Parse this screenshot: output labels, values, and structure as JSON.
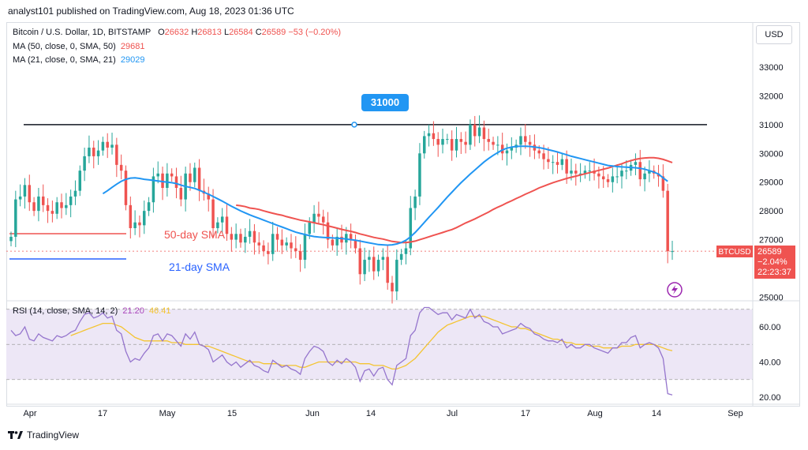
{
  "header": {
    "publisher": "analyst101 published on TradingView.com, Aug 18, 2023 01:36 UTC"
  },
  "legend": {
    "symbol": "Bitcoin / U.S. Dollar, 1D, BITSTAMP",
    "o_label": "O",
    "o_val": "26632",
    "h_label": "H",
    "h_val": "26813",
    "l_label": "L",
    "l_val": "26584",
    "c_label": "C",
    "c_val": "26589",
    "change": "−53 (−0.20%)",
    "ma50_label": "MA (50, close, 0, SMA, 50)",
    "ma50_val": "29681",
    "ma21_label": "MA (21, close, 0, SMA, 21)",
    "ma21_val": "29029",
    "rsi_label": "RSI (14, close, SMA, 14, 2)",
    "rsi_val": "21.20",
    "rsi_sma_val": "46.41"
  },
  "currency_button": "USD",
  "badges": {
    "resistance": "31000",
    "ticker": "BTCUSD",
    "price": "26589",
    "change_pct": "−2.04%",
    "countdown": "22:23:37"
  },
  "annotations": {
    "sma50": "50-day SMA",
    "sma21": "21-day SMA"
  },
  "footer": {
    "brand": "TradingView"
  },
  "colors": {
    "up": "#26a69a",
    "down": "#ef5350",
    "ma50": "#ef5350",
    "ma21": "#2196f3",
    "rsi": "#9575cd",
    "rsi_sma": "#f4c430",
    "rsi_band": "#ede7f6",
    "badge_blue": "#2196f3"
  },
  "chart_data": {
    "type": "candlestick",
    "title": "Bitcoin / U.S. Dollar, 1D, BITSTAMP",
    "price_axis_ticks": [
      "33000",
      "32000",
      "31000",
      "30000",
      "29000",
      "28000",
      "27000",
      "25000"
    ],
    "ylim": [
      25000,
      33500
    ],
    "x_tick_labels": [
      "Apr",
      "17",
      "May",
      "15",
      "Jun",
      "14",
      "Jul",
      "17",
      "Aug",
      "14",
      "Sep"
    ],
    "resistance_level": 31000,
    "close": [
      27100,
      28400,
      28500,
      28900,
      28300,
      28000,
      28500,
      28200,
      28000,
      27900,
      28300,
      28100,
      28200,
      28500,
      28700,
      29400,
      29900,
      30200,
      29900,
      30100,
      30400,
      30200,
      30300,
      29600,
      29400,
      28200,
      27400,
      27600,
      27500,
      28000,
      28300,
      29200,
      29300,
      28800,
      29300,
      29200,
      28800,
      28400,
      29300,
      29000,
      29500,
      28700,
      28600,
      28400,
      27400,
      27600,
      27800,
      27200,
      27000,
      27200,
      26900,
      27100,
      27300,
      26900,
      26800,
      26600,
      26500,
      27200,
      27000,
      26800,
      26900,
      26700,
      26600,
      26300,
      27200,
      27600,
      27900,
      27800,
      27600,
      27000,
      26800,
      27100,
      26900,
      27200,
      27000,
      26700,
      25800,
      26300,
      26400,
      25900,
      26300,
      26400,
      25500,
      25200,
      26300,
      26500,
      26700,
      28100,
      28500,
      30000,
      30600,
      30700,
      30500,
      30300,
      30500,
      30500,
      30100,
      30500,
      30400,
      30300,
      31000,
      30600,
      30900,
      30500,
      30400,
      30300,
      30300,
      30000,
      30100,
      30200,
      30300,
      30600,
      30400,
      30300,
      30100,
      30000,
      29800,
      29700,
      29700,
      29600,
      29800,
      29300,
      29400,
      29300,
      29300,
      29400,
      29400,
      29300,
      29200,
      29100,
      29000,
      29200,
      29200,
      29400,
      29400,
      29600,
      29700,
      29100,
      29300,
      29400,
      29300,
      29200,
      28700,
      26600,
      26600
    ],
    "ma50": [
      null,
      null,
      null,
      null,
      null,
      null,
      null,
      null,
      null,
      null,
      null,
      null,
      null,
      null,
      null,
      null,
      null,
      null,
      null,
      null,
      null,
      null,
      null,
      null,
      null,
      null,
      null,
      null,
      null,
      null,
      null,
      null,
      null,
      null,
      null,
      null,
      null,
      null,
      null,
      null,
      null,
      null,
      null,
      null,
      null,
      null,
      null,
      null,
      null,
      28200,
      28180,
      28150,
      28100,
      28080,
      28050,
      28000,
      27960,
      27920,
      27880,
      27850,
      27800,
      27760,
      27720,
      27680,
      27650,
      27620,
      27590,
      27550,
      27520,
      27480,
      27440,
      27400,
      27360,
      27320,
      27290,
      27250,
      27200,
      27160,
      27120,
      27080,
      27050,
      27020,
      26980,
      26940,
      26920,
      26900,
      26900,
      26920,
      26950,
      27000,
      27050,
      27100,
      27150,
      27200,
      27250,
      27300,
      27350,
      27420,
      27500,
      27580,
      27650,
      27720,
      27800,
      27880,
      27960,
      28050,
      28130,
      28200,
      28280,
      28350,
      28430,
      28500,
      28580,
      28650,
      28720,
      28800,
      28860,
      28920,
      28980,
      29030,
      29080,
      29130,
      29170,
      29210,
      29250,
      29290,
      29330,
      29370,
      29410,
      29450,
      29490,
      29540,
      29590,
      29640,
      29700,
      29750,
      29790,
      29820,
      29840,
      29850,
      29850,
      29830,
      29790,
      29740,
      29681
    ],
    "ma21": [
      null,
      null,
      null,
      null,
      null,
      null,
      null,
      null,
      null,
      null,
      null,
      null,
      null,
      null,
      null,
      null,
      null,
      null,
      null,
      null,
      28600,
      28700,
      28820,
      28930,
      29030,
      29100,
      29140,
      29150,
      29130,
      29100,
      29080,
      29060,
      29040,
      29020,
      29000,
      28980,
      28950,
      28900,
      28850,
      28820,
      28780,
      28720,
      28650,
      28580,
      28500,
      28420,
      28340,
      28250,
      28160,
      28080,
      28000,
      27930,
      27860,
      27800,
      27740,
      27680,
      27620,
      27560,
      27500,
      27440,
      27380,
      27320,
      27260,
      27220,
      27180,
      27140,
      27110,
      27090,
      27080,
      27070,
      27060,
      27050,
      27040,
      27020,
      27000,
      26980,
      26950,
      26920,
      26890,
      26860,
      26830,
      26820,
      26810,
      26820,
      26850,
      26900,
      26980,
      27100,
      27250,
      27420,
      27600,
      27780,
      27950,
      28120,
      28300,
      28480,
      28650,
      28820,
      28980,
      29130,
      29280,
      29420,
      29560,
      29700,
      29820,
      29930,
      30030,
      30120,
      30180,
      30220,
      30240,
      30250,
      30250,
      30240,
      30220,
      30200,
      30170,
      30130,
      30090,
      30050,
      30000,
      29950,
      29900,
      29860,
      29820,
      29780,
      29740,
      29700,
      29660,
      29620,
      29580,
      29560,
      29540,
      29530,
      29520,
      29510,
      29500,
      29480,
      29450,
      29400,
      29350,
      29280,
      29150,
      29029
    ],
    "rsi": [
      58,
      55,
      56,
      60,
      53,
      52,
      56,
      54,
      53,
      52,
      55,
      54,
      55,
      57,
      58,
      63,
      67,
      68,
      65,
      66,
      68,
      65,
      66,
      58,
      56,
      46,
      40,
      42,
      41,
      45,
      48,
      55,
      56,
      52,
      56,
      55,
      52,
      49,
      56,
      53,
      57,
      50,
      49,
      47,
      40,
      42,
      44,
      40,
      38,
      40,
      37,
      39,
      41,
      38,
      37,
      35,
      34,
      41,
      39,
      37,
      38,
      36,
      35,
      33,
      42,
      46,
      49,
      48,
      46,
      40,
      38,
      41,
      39,
      42,
      40,
      37,
      29,
      35,
      36,
      32,
      36,
      37,
      30,
      27,
      38,
      40,
      42,
      55,
      58,
      68,
      71,
      71,
      69,
      67,
      68,
      68,
      64,
      67,
      66,
      65,
      70,
      65,
      67,
      63,
      62,
      60,
      60,
      56,
      57,
      58,
      59,
      62,
      60,
      59,
      56,
      55,
      53,
      52,
      52,
      51,
      53,
      48,
      50,
      48,
      48,
      50,
      50,
      48,
      47,
      46,
      45,
      48,
      48,
      51,
      51,
      54,
      55,
      48,
      50,
      51,
      50,
      48,
      42,
      22,
      21.2
    ],
    "rsi_sma": [
      null,
      null,
      null,
      null,
      null,
      null,
      null,
      null,
      null,
      null,
      null,
      null,
      null,
      55,
      56,
      57,
      58,
      59,
      60,
      61,
      62,
      62,
      62,
      61,
      60,
      58,
      56,
      54,
      53,
      52,
      52,
      52,
      52,
      52,
      52,
      51,
      51,
      51,
      50,
      50,
      50,
      50,
      49,
      49,
      48,
      47,
      46,
      45,
      44,
      43,
      42,
      41,
      40,
      40,
      40,
      39,
      39,
      39,
      39,
      38,
      38,
      38,
      38,
      37,
      37,
      38,
      39,
      40,
      40,
      40,
      40,
      40,
      40,
      40,
      40,
      40,
      39,
      39,
      39,
      38,
      38,
      38,
      37,
      36,
      36,
      37,
      38,
      40,
      42,
      45,
      48,
      51,
      54,
      57,
      59,
      61,
      62,
      63,
      64,
      65,
      66,
      66,
      66,
      66,
      65,
      64,
      63,
      62,
      61,
      60,
      60,
      59,
      59,
      58,
      57,
      56,
      55,
      54,
      53,
      53,
      52,
      51,
      51,
      50,
      50,
      50,
      49,
      49,
      49,
      48,
      48,
      48,
      48,
      49,
      49,
      49,
      50,
      50,
      50,
      50,
      50,
      49,
      48,
      47,
      46.41
    ],
    "rsi_axis_ticks": [
      "60.00",
      "40.00",
      "20.00"
    ],
    "rsi_bands": [
      70,
      30
    ],
    "grid": false
  }
}
